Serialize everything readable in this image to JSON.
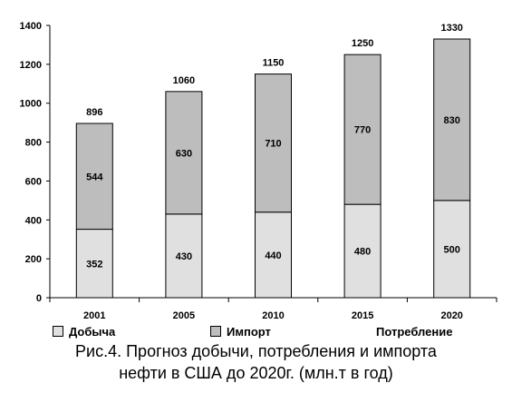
{
  "chart_data": {
    "type": "bar",
    "stacked": true,
    "categories": [
      "2001",
      "2005",
      "2010",
      "2015",
      "2020"
    ],
    "series": [
      {
        "name": "Добыча",
        "values": [
          352,
          430,
          440,
          480,
          500
        ],
        "color": "#e0e0e0"
      },
      {
        "name": "Импорт",
        "values": [
          544,
          630,
          710,
          770,
          830
        ],
        "color": "#bdbdbd"
      }
    ],
    "totals": [
      896,
      1060,
      1150,
      1250,
      1330
    ],
    "ylim": [
      0,
      1400
    ],
    "yticks": [
      0,
      200,
      400,
      600,
      800,
      1000,
      1200,
      1400
    ],
    "grid": false,
    "legend_position": "bottom"
  },
  "legend": {
    "production": "Добыча",
    "import": "Импорт",
    "consumption": "Потребление"
  },
  "caption": {
    "line1": "Рис.4. Прогноз добычи, потребления и импорта",
    "line2": "нефти в США до 2020г. (млн.т в год)"
  }
}
